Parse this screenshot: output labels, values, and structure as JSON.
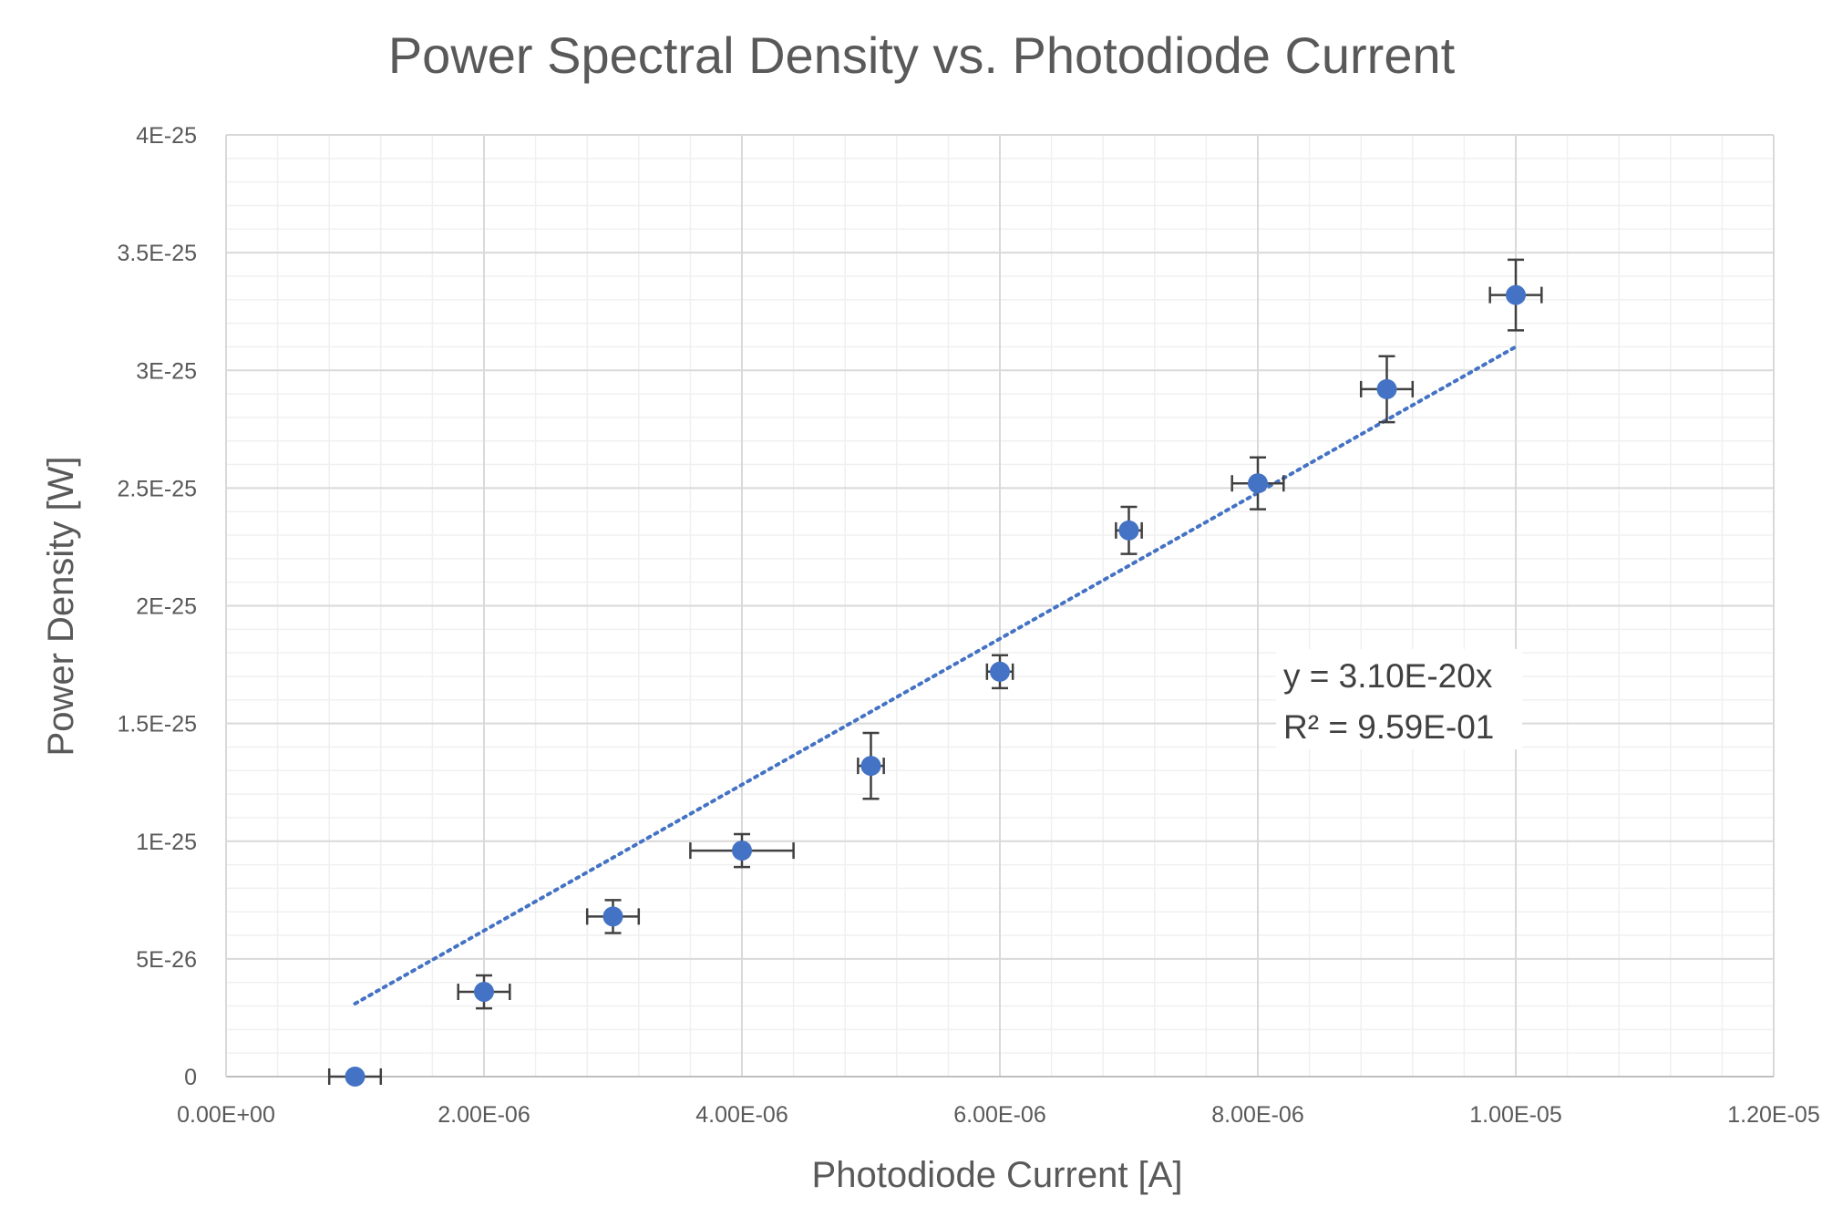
{
  "chart_data": {
    "type": "scatter",
    "title": "Power Spectral Density vs. Photodiode Current",
    "xlabel": "Photodiode Current [A]",
    "ylabel": "Power Density [W]",
    "xlim": [
      0,
      1.2e-05
    ],
    "ylim": [
      0,
      4e-25
    ],
    "x_ticks": [
      0,
      2e-06,
      4e-06,
      6e-06,
      8e-06,
      1e-05,
      1.2e-05
    ],
    "x_tick_labels": [
      "0.00E+00",
      "2.00E-06",
      "4.00E-06",
      "6.00E-06",
      "8.00E-06",
      "1.00E-05",
      "1.20E-05"
    ],
    "y_ticks": [
      0,
      5e-26,
      1e-25,
      1.5e-25,
      2e-25,
      2.5e-25,
      3e-25,
      3.5e-25,
      4e-25
    ],
    "y_tick_labels": [
      "0",
      "5E-26",
      "1E-25",
      "1.5E-25",
      "2E-25",
      "2.5E-25",
      "3E-25",
      "3.5E-25",
      "4E-25"
    ],
    "grid": true,
    "series": [
      {
        "color": "#4472C4",
        "points": [
          {
            "x": 1e-06,
            "y": 0,
            "xerr": 2e-07,
            "yerr": 0
          },
          {
            "x": 2e-06,
            "y": 3.6e-26,
            "xerr": 2e-07,
            "yerr": 7e-27
          },
          {
            "x": 3e-06,
            "y": 6.8e-26,
            "xerr": 2e-07,
            "yerr": 7e-27
          },
          {
            "x": 4e-06,
            "y": 9.6e-26,
            "xerr": 4e-07,
            "yerr": 7e-27
          },
          {
            "x": 5e-06,
            "y": 1.32e-25,
            "xerr": 1e-07,
            "yerr": 1.4e-26
          },
          {
            "x": 6e-06,
            "y": 1.72e-25,
            "xerr": 1e-07,
            "yerr": 7e-27
          },
          {
            "x": 7e-06,
            "y": 2.32e-25,
            "xerr": 1e-07,
            "yerr": 1e-26
          },
          {
            "x": 8e-06,
            "y": 2.52e-25,
            "xerr": 2e-07,
            "yerr": 1.1e-26
          },
          {
            "x": 9e-06,
            "y": 2.92e-25,
            "xerr": 2e-07,
            "yerr": 1.4e-26
          },
          {
            "x": 1e-05,
            "y": 3.32e-25,
            "xerr": 2e-07,
            "yerr": 1.5e-26
          }
        ]
      }
    ],
    "trendline": {
      "type": "linear-through-origin",
      "slope": 3.1e-20,
      "x_range": [
        1e-06,
        1e-05
      ],
      "style": "dotted",
      "color": "#4472C4",
      "equation": "y = 3.10E-20x",
      "r_squared": "R² = 9.59E-01"
    },
    "error_bar_color": "#404040"
  }
}
